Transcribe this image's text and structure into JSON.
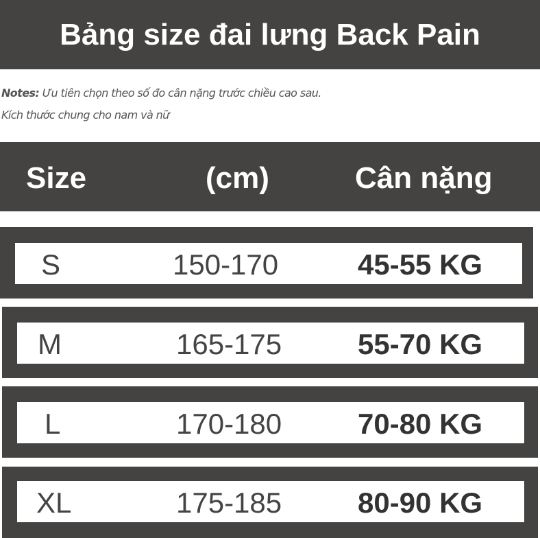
{
  "title": "Bảng size đai lưng Back Pain",
  "notes": {
    "label": "Notes:",
    "line1": "Ưu tiên chọn theo số đo cân nặng trước chiều cao sau.",
    "line2": "Kích thước chung cho nam và nữ"
  },
  "header": {
    "size": "Size",
    "cm": "(cm)",
    "weight": "Cân nặng"
  },
  "rows": [
    {
      "size": "S",
      "cm": "150-170",
      "weight": "45-55 KG"
    },
    {
      "size": "M",
      "cm": "165-175",
      "weight": "55-70 KG"
    },
    {
      "size": "L",
      "cm": "170-180",
      "weight": "70-80 KG"
    },
    {
      "size": "XL",
      "cm": "175-185",
      "weight": "80-90 KG"
    }
  ],
  "colors": {
    "dark": "#454341"
  }
}
